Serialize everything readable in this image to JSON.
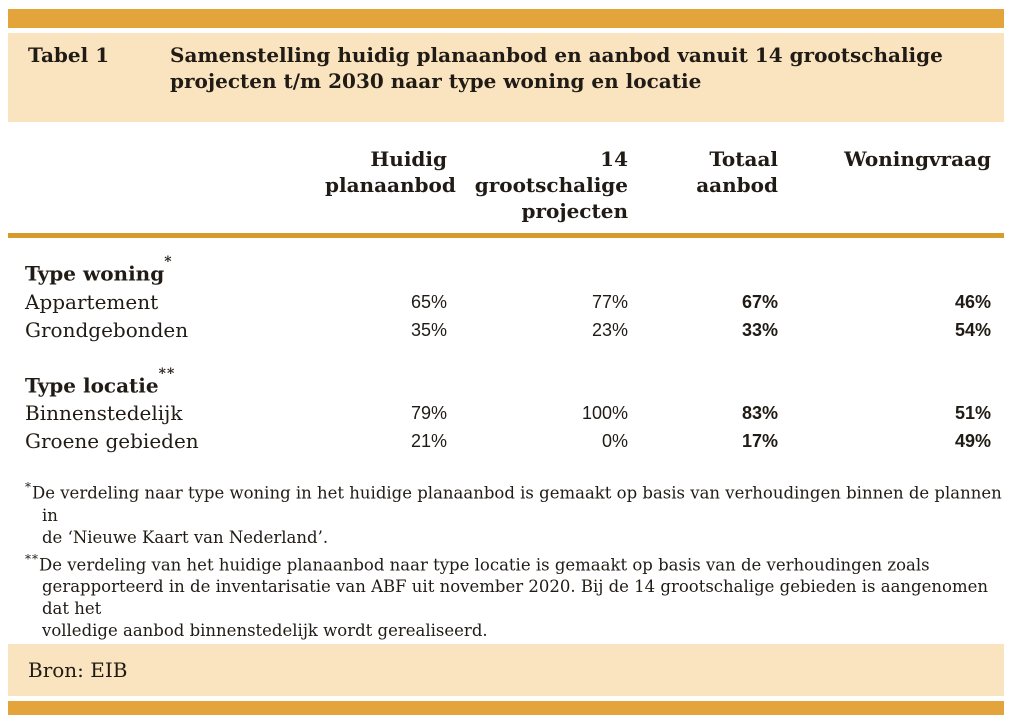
{
  "caption": {
    "label": "Tabel 1",
    "title": "Samenstelling huidig planaanbod en aanbod vanuit 14 grootschalige\nprojecten t/m 2030 naar type woning en locatie"
  },
  "columns": [
    "Huidig\nplanaanbod",
    "14\ngrootschalige\nprojecten",
    "Totaal\naanbod",
    "Woningvraag"
  ],
  "sections": [
    {
      "heading": "Type woning",
      "marker": "*",
      "rows": [
        {
          "label": "Appartement",
          "values": [
            "65%",
            "77%",
            "67%",
            "46%"
          ]
        },
        {
          "label": "Grondgebonden",
          "values": [
            "35%",
            "23%",
            "33%",
            "54%"
          ]
        }
      ]
    },
    {
      "heading": "Type locatie",
      "marker": "**",
      "rows": [
        {
          "label": "Binnenstedelijk",
          "values": [
            "79%",
            "100%",
            "83%",
            "51%"
          ]
        },
        {
          "label": "Groene gebieden",
          "values": [
            "21%",
            "0%",
            "17%",
            "49%"
          ]
        }
      ]
    }
  ],
  "footnotes": [
    {
      "marker": "*",
      "text": "De verdeling naar type woning in het huidige planaanbod is gemaakt op basis van verhoudingen binnen de plannen in\nde ‘Nieuwe Kaart van Nederland’."
    },
    {
      "marker": "**",
      "text": "De verdeling van het huidige planaanbod naar type locatie is gemaakt op basis van de verhoudingen zoals\ngerapporteerd in de inventarisatie van ABF uit november 2020. Bij de 14 grootschalige gebieden is aangenomen dat het\nvolledige aanbod binnenstedelijk wordt gerealiseerd."
    }
  ],
  "source": {
    "label": "Bron: EIB"
  },
  "colors": {
    "accent_bar": "#E3A53B",
    "panel_bg": "#FAE4C0",
    "header_rule": "#D69B2B",
    "text": "#201B15"
  }
}
